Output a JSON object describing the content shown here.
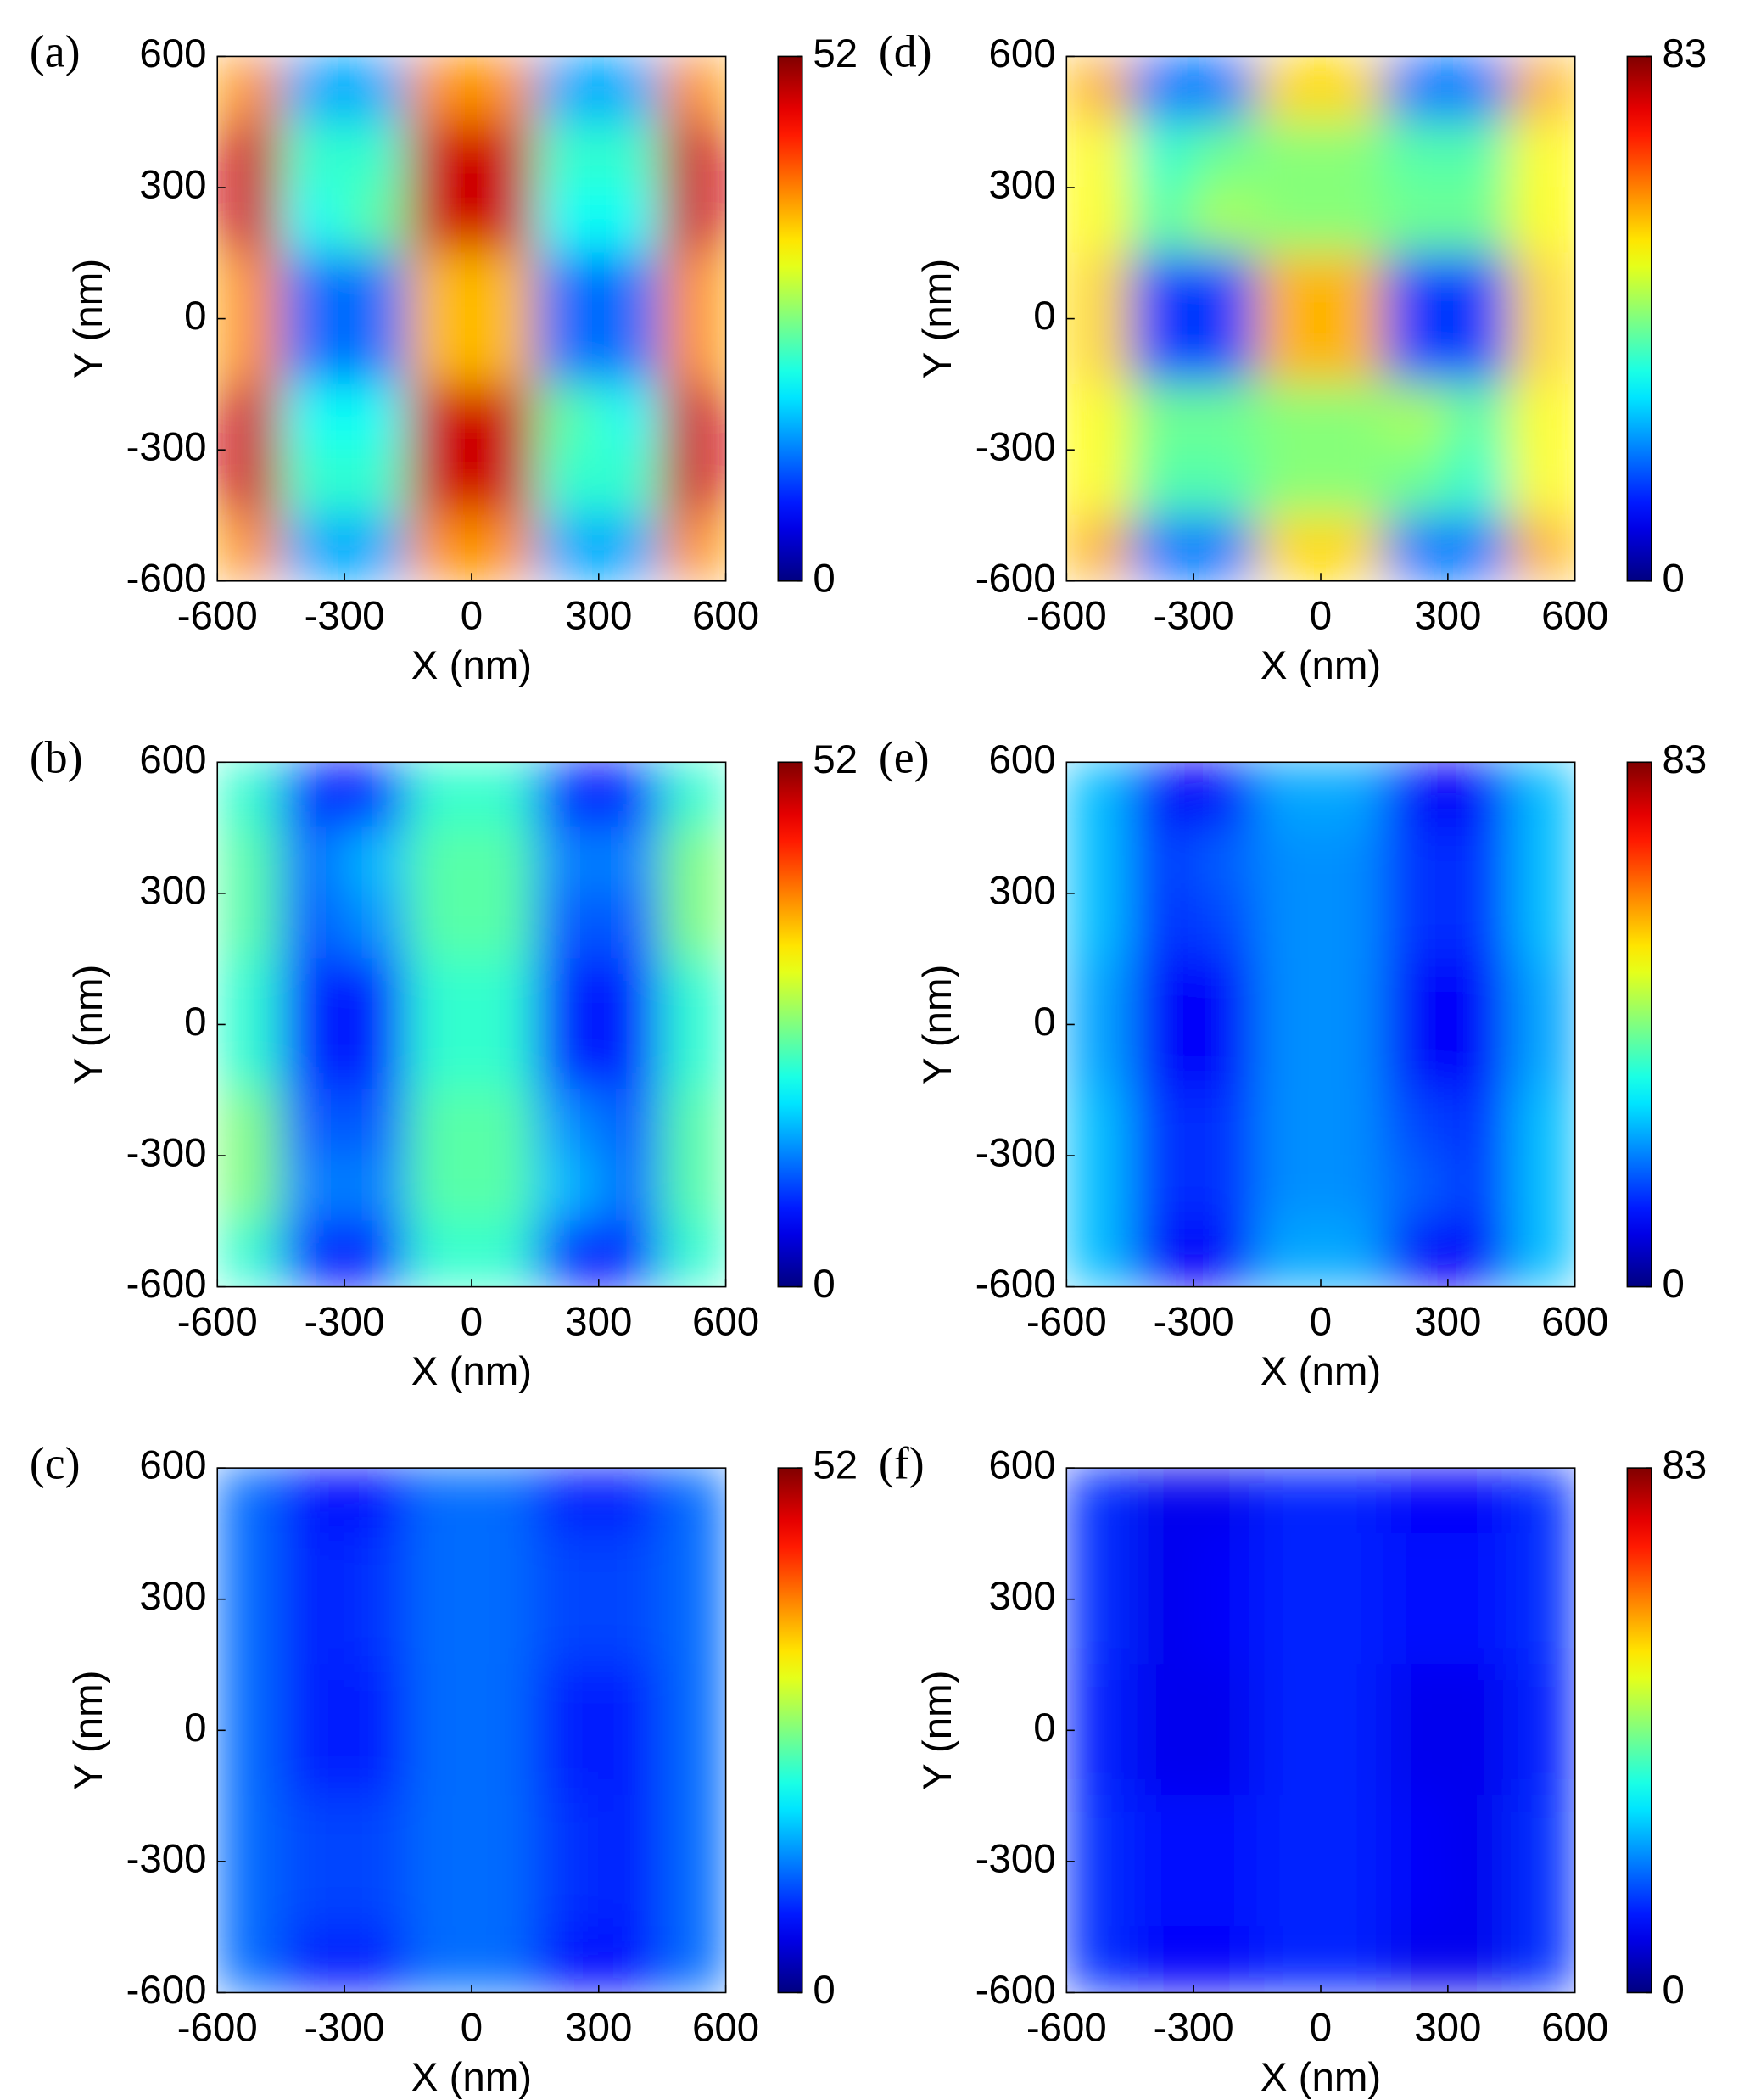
{
  "chart_data": [
    {
      "type": "heatmap",
      "label": "(a)",
      "xlabel": "X (nm)",
      "ylabel": "Y (nm)",
      "xlim": [
        -600,
        600
      ],
      "ylim": [
        -600,
        600
      ],
      "xticks": [
        -600,
        -300,
        0,
        300,
        600
      ],
      "yticks": [
        -600,
        -300,
        0,
        300,
        600
      ],
      "clim": [
        0,
        52
      ],
      "cticks": [
        0,
        52
      ],
      "z": [
        [
          38,
          15,
          15,
          38,
          38,
          15,
          15,
          38
        ],
        [
          48,
          22,
          22,
          48,
          48,
          22,
          22,
          48
        ],
        [
          48,
          20,
          24,
          48,
          48,
          20,
          20,
          48
        ],
        [
          38,
          12,
          12,
          36,
          36,
          12,
          12,
          38
        ],
        [
          38,
          12,
          12,
          36,
          36,
          12,
          12,
          38
        ],
        [
          48,
          20,
          20,
          48,
          48,
          24,
          20,
          48
        ],
        [
          48,
          22,
          22,
          48,
          48,
          22,
          22,
          48
        ],
        [
          38,
          15,
          15,
          38,
          38,
          15,
          15,
          38
        ]
      ]
    },
    {
      "type": "heatmap",
      "label": "(b)",
      "xlabel": "X (nm)",
      "ylabel": "Y (nm)",
      "xlim": [
        -600,
        600
      ],
      "ylim": [
        -600,
        600
      ],
      "xticks": [
        -600,
        -300,
        0,
        300,
        600
      ],
      "yticks": [
        -600,
        -300,
        0,
        300,
        600
      ],
      "clim": [
        0,
        52
      ],
      "cticks": [
        0,
        52
      ],
      "z": [
        [
          22,
          8,
          8,
          22,
          22,
          8,
          8,
          22
        ],
        [
          24,
          12,
          16,
          24,
          24,
          13,
          13,
          26
        ],
        [
          24,
          11,
          14,
          24,
          24,
          11,
          11,
          26
        ],
        [
          22,
          8,
          8,
          22,
          22,
          8,
          8,
          22
        ],
        [
          22,
          8,
          8,
          22,
          22,
          8,
          8,
          22
        ],
        [
          26,
          11,
          11,
          24,
          24,
          14,
          11,
          24
        ],
        [
          26,
          13,
          13,
          24,
          24,
          16,
          12,
          24
        ],
        [
          22,
          8,
          8,
          22,
          22,
          8,
          8,
          22
        ]
      ]
    },
    {
      "type": "heatmap",
      "label": "(c)",
      "xlabel": "X (nm)",
      "ylabel": "Y (nm)",
      "xlim": [
        -600,
        600
      ],
      "ylim": [
        -600,
        600
      ],
      "xticks": [
        -600,
        -300,
        0,
        300,
        600
      ],
      "yticks": [
        -600,
        -300,
        0,
        300,
        600
      ],
      "clim": [
        0,
        52
      ],
      "cticks": [
        0,
        52
      ],
      "z": [
        [
          12,
          7,
          7,
          12,
          12,
          8,
          8,
          12
        ],
        [
          12,
          8,
          9,
          12,
          12,
          10,
          10,
          12
        ],
        [
          12,
          8,
          9,
          12,
          12,
          10,
          10,
          12
        ],
        [
          12,
          8,
          8,
          12,
          12,
          8,
          8,
          12
        ],
        [
          12,
          8,
          8,
          12,
          12,
          8,
          8,
          12
        ],
        [
          12,
          10,
          10,
          12,
          12,
          9,
          8,
          12
        ],
        [
          12,
          10,
          10,
          12,
          12,
          9,
          8,
          12
        ],
        [
          12,
          8,
          8,
          12,
          12,
          7,
          7,
          12
        ]
      ]
    },
    {
      "type": "heatmap",
      "label": "(d)",
      "xlabel": "X (nm)",
      "ylabel": "Y (nm)",
      "xlim": [
        -600,
        600
      ],
      "ylim": [
        -600,
        600
      ],
      "xticks": [
        -600,
        -300,
        0,
        300,
        600
      ],
      "yticks": [
        -600,
        -300,
        0,
        300,
        600
      ],
      "clim": [
        0,
        83
      ],
      "cticks": [
        0,
        83
      ],
      "z": [
        [
          58,
          20,
          20,
          55,
          55,
          20,
          20,
          58
        ],
        [
          52,
          35,
          40,
          42,
          42,
          38,
          38,
          52
        ],
        [
          52,
          38,
          45,
          42,
          42,
          40,
          40,
          52
        ],
        [
          55,
          15,
          15,
          58,
          58,
          15,
          15,
          55
        ],
        [
          55,
          15,
          15,
          58,
          58,
          15,
          15,
          55
        ],
        [
          52,
          40,
          40,
          42,
          42,
          45,
          38,
          52
        ],
        [
          52,
          38,
          38,
          42,
          42,
          40,
          35,
          52
        ],
        [
          58,
          20,
          20,
          55,
          55,
          20,
          20,
          58
        ]
      ]
    },
    {
      "type": "heatmap",
      "label": "(e)",
      "xlabel": "X (nm)",
      "ylabel": "Y (nm)",
      "xlim": [
        -600,
        600
      ],
      "ylim": [
        -600,
        600
      ],
      "xticks": [
        -600,
        -300,
        0,
        300,
        600
      ],
      "yticks": [
        -600,
        -300,
        0,
        300,
        600
      ],
      "clim": [
        0,
        83
      ],
      "cticks": [
        0,
        83
      ],
      "z": [
        [
          26,
          10,
          10,
          24,
          24,
          10,
          10,
          26
        ],
        [
          26,
          15,
          18,
          22,
          22,
          14,
          14,
          26
        ],
        [
          26,
          14,
          16,
          22,
          22,
          14,
          14,
          26
        ],
        [
          24,
          10,
          10,
          22,
          22,
          10,
          10,
          24
        ],
        [
          24,
          10,
          10,
          22,
          22,
          10,
          10,
          24
        ],
        [
          26,
          14,
          14,
          22,
          22,
          16,
          14,
          26
        ],
        [
          26,
          14,
          14,
          22,
          22,
          18,
          15,
          26
        ],
        [
          26,
          10,
          10,
          24,
          24,
          10,
          10,
          26
        ]
      ]
    },
    {
      "type": "heatmap",
      "label": "(f)",
      "xlabel": "X (nm)",
      "ylabel": "Y (nm)",
      "xlim": [
        -600,
        600
      ],
      "ylim": [
        -600,
        600
      ],
      "xticks": [
        -600,
        -300,
        0,
        300,
        600
      ],
      "yticks": [
        -600,
        -300,
        0,
        300,
        600
      ],
      "clim": [
        0,
        83
      ],
      "cticks": [
        0,
        83
      ],
      "z": [
        [
          14,
          9,
          9,
          13,
          13,
          10,
          10,
          14
        ],
        [
          14,
          9,
          10,
          13,
          13,
          11,
          11,
          14
        ],
        [
          14,
          9,
          10,
          13,
          13,
          11,
          11,
          14
        ],
        [
          13,
          9,
          9,
          13,
          13,
          9,
          9,
          13
        ],
        [
          13,
          9,
          9,
          13,
          13,
          9,
          9,
          13
        ],
        [
          14,
          11,
          11,
          13,
          13,
          10,
          9,
          14
        ],
        [
          14,
          11,
          11,
          13,
          13,
          10,
          9,
          14
        ],
        [
          14,
          10,
          10,
          13,
          13,
          9,
          9,
          14
        ]
      ]
    }
  ]
}
